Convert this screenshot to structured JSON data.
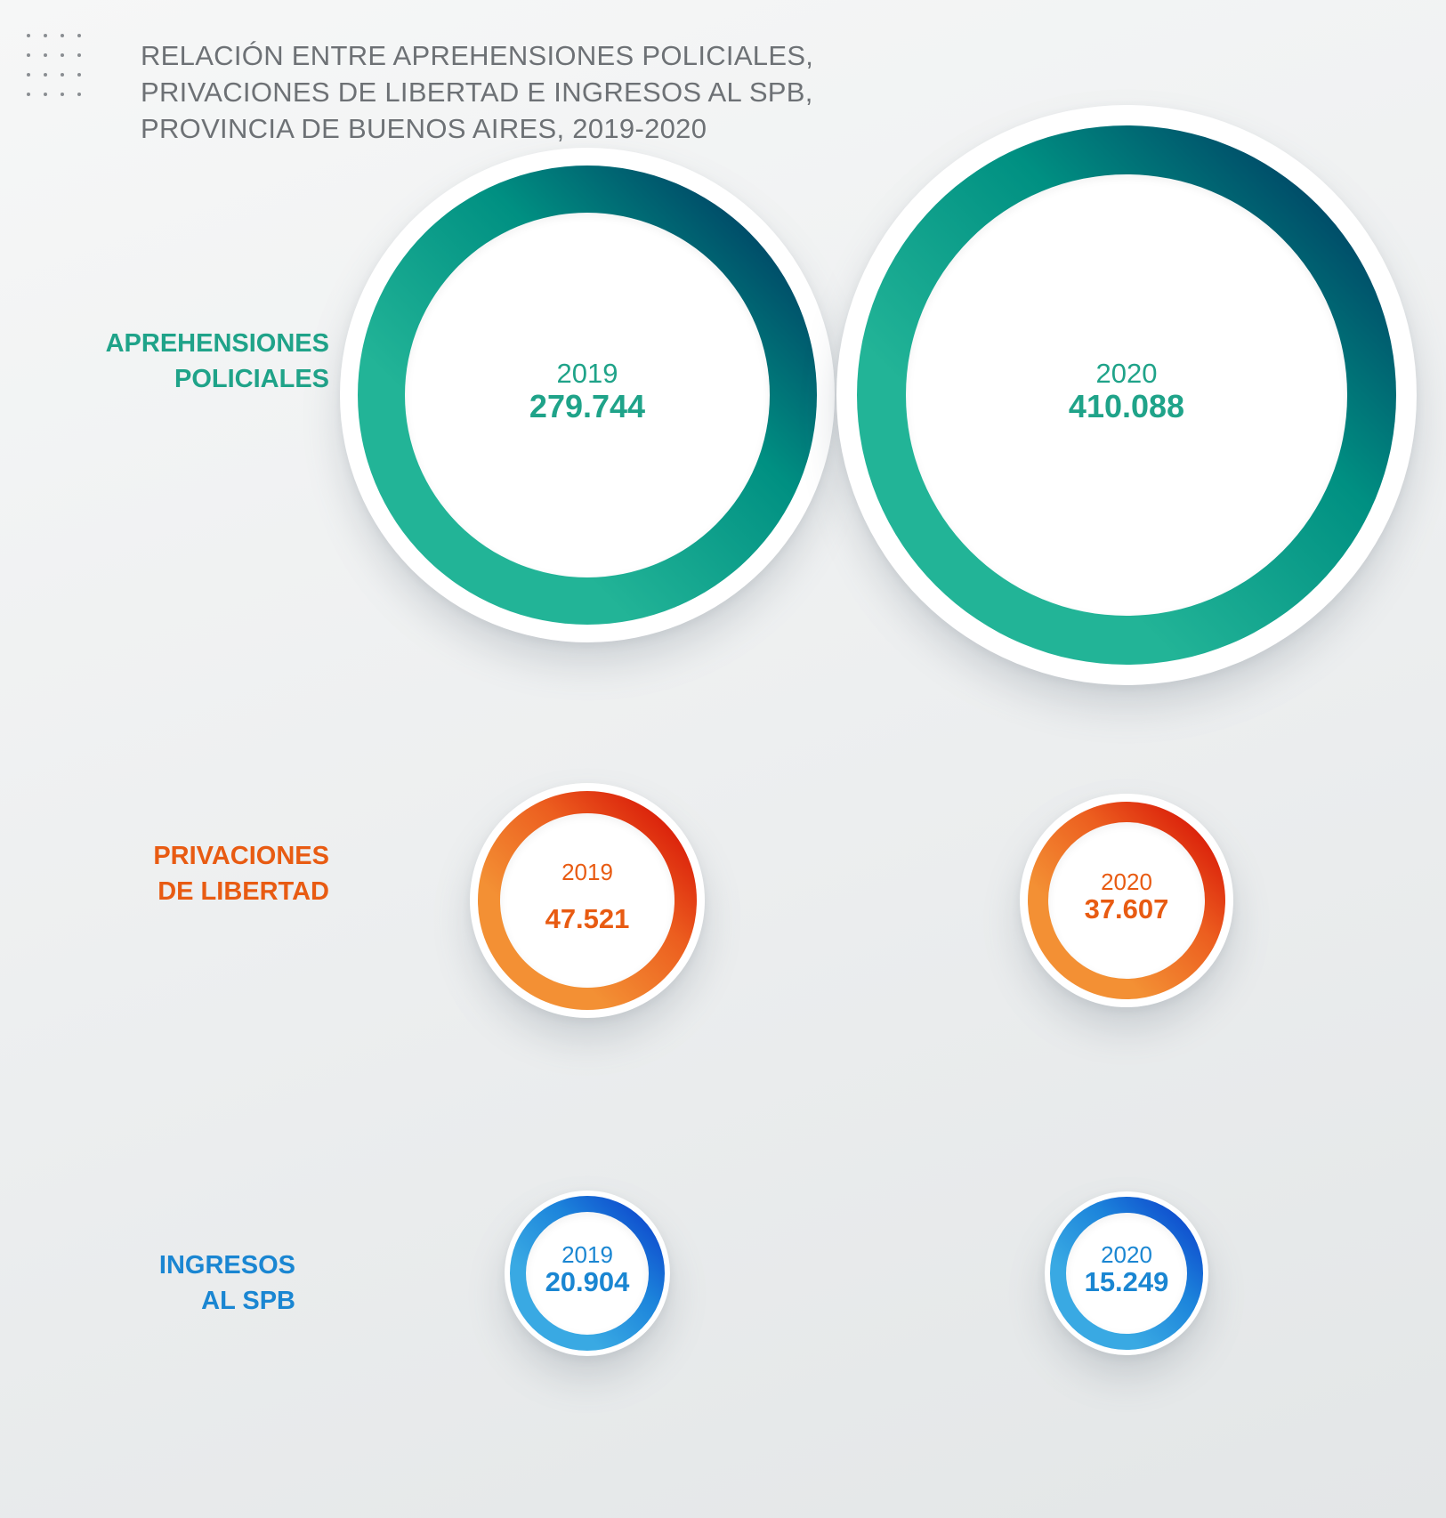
{
  "title_lines": [
    "RELACIÓN ENTRE APREHENSIONES POLICIALES,",
    "PRIVACIONES DE LIBERTAD E INGRESOS AL SPB,",
    "PROVINCIA DE BUENOS AIRES, 2019-2020"
  ],
  "rows": [
    {
      "label_lines": [
        "APREHENSIONES",
        "POLICIALES"
      ],
      "color": "#1fa389",
      "ring_colors": [
        "#22b497",
        "#009082",
        "#00245a"
      ],
      "items": [
        {
          "year": "2019",
          "value": "279.744"
        },
        {
          "year": "2020",
          "value": "410.088"
        }
      ]
    },
    {
      "label_lines": [
        "PRIVACIONES",
        "DE LIBERTAD"
      ],
      "color": "#e85b12",
      "ring_colors": [
        "#f39034",
        "#ec5e1f",
        "#d10000"
      ],
      "items": [
        {
          "year": "2019",
          "value": "47.521"
        },
        {
          "year": "2020",
          "value": "37.607"
        }
      ]
    },
    {
      "label_lines": [
        "INGRESOS",
        "AL SPB"
      ],
      "color": "#1a86d2",
      "ring_colors": [
        "#39a9e3",
        "#1c84db",
        "#0a34c8"
      ],
      "items": [
        {
          "year": "2019",
          "value": "20.904"
        },
        {
          "year": "2020",
          "value": "15.249"
        }
      ]
    }
  ],
  "chart_data": {
    "type": "bubble",
    "title": "RELACIÓN ENTRE APREHENSIONES POLICIALES, PRIVACIONES DE LIBERTAD E INGRESOS AL SPB, PROVINCIA DE BUENOS AIRES, 2019-2020",
    "categories": [
      "2019",
      "2020"
    ],
    "series": [
      {
        "name": "APREHENSIONES POLICIALES",
        "values": [
          279744,
          410088
        ]
      },
      {
        "name": "PRIVACIONES DE LIBERTAD",
        "values": [
          47521,
          37607
        ]
      },
      {
        "name": "INGRESOS AL SPB",
        "values": [
          20904,
          15249
        ]
      }
    ]
  }
}
